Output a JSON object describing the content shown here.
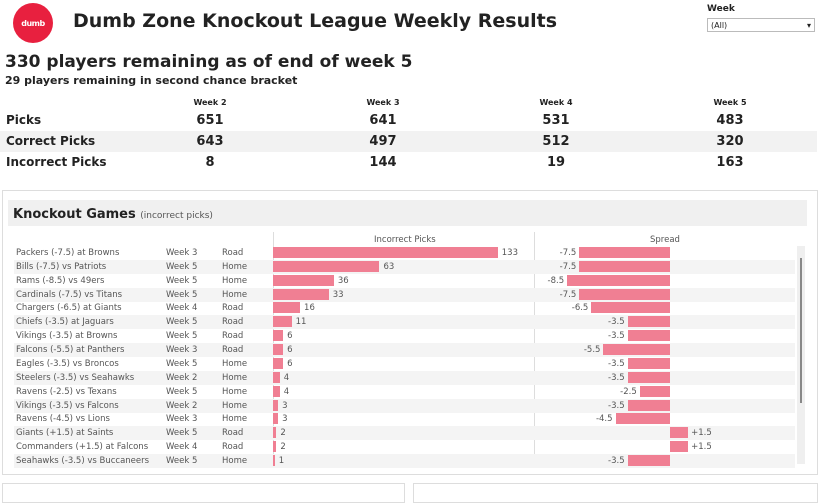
{
  "header": {
    "logo_text": "dumb",
    "title": "Dumb Zone Knockout League Weekly Results"
  },
  "filter": {
    "label": "Week",
    "value": "(All)"
  },
  "summary": {
    "headline": "330 players remaining as of end of week 5",
    "subline": "29 players remaining in second chance bracket"
  },
  "stats": {
    "columns": [
      "Week 2",
      "Week 3",
      "Week 4",
      "Week 5"
    ],
    "rows": [
      {
        "label": "Picks",
        "values": [
          "651",
          "641",
          "531",
          "483"
        ]
      },
      {
        "label": "Correct Picks",
        "values": [
          "643",
          "497",
          "512",
          "320"
        ]
      },
      {
        "label": "Incorrect Picks",
        "values": [
          "8",
          "144",
          "19",
          "163"
        ]
      }
    ]
  },
  "knockout": {
    "title": "Knockout Games",
    "subtitle": "(incorrect picks)",
    "col_incorrect": "Incorrect Picks",
    "col_spread": "Spread",
    "bar_color": "#f07f93",
    "rows": [
      {
        "game": "Packers (-7.5) at Browns",
        "week": "Week 3",
        "loc": "Road",
        "incorrect": 133,
        "spread": -7.5,
        "spread_label": "-7.5"
      },
      {
        "game": "Bills (-7.5) vs Patriots",
        "week": "Week 5",
        "loc": "Home",
        "incorrect": 63,
        "spread": -7.5,
        "spread_label": "-7.5"
      },
      {
        "game": "Rams (-8.5) vs 49ers",
        "week": "Week 5",
        "loc": "Home",
        "incorrect": 36,
        "spread": -8.5,
        "spread_label": "-8.5"
      },
      {
        "game": "Cardinals (-7.5) vs Titans",
        "week": "Week 5",
        "loc": "Home",
        "incorrect": 33,
        "spread": -7.5,
        "spread_label": "-7.5"
      },
      {
        "game": "Chargers (-6.5) at Giants",
        "week": "Week 4",
        "loc": "Road",
        "incorrect": 16,
        "spread": -6.5,
        "spread_label": "-6.5"
      },
      {
        "game": "Chiefs (-3.5) at Jaguars",
        "week": "Week 5",
        "loc": "Road",
        "incorrect": 11,
        "spread": -3.5,
        "spread_label": "-3.5"
      },
      {
        "game": "Vikings (-3.5) at Browns",
        "week": "Week 5",
        "loc": "Road",
        "incorrect": 6,
        "spread": -3.5,
        "spread_label": "-3.5"
      },
      {
        "game": "Falcons (-5.5) at Panthers",
        "week": "Week 3",
        "loc": "Road",
        "incorrect": 6,
        "spread": -5.5,
        "spread_label": "-5.5"
      },
      {
        "game": "Eagles (-3.5) vs Broncos",
        "week": "Week 5",
        "loc": "Home",
        "incorrect": 6,
        "spread": -3.5,
        "spread_label": "-3.5"
      },
      {
        "game": "Steelers (-3.5) vs Seahawks",
        "week": "Week 2",
        "loc": "Home",
        "incorrect": 4,
        "spread": -3.5,
        "spread_label": "-3.5"
      },
      {
        "game": "Ravens (-2.5) vs Texans",
        "week": "Week 5",
        "loc": "Home",
        "incorrect": 4,
        "spread": -2.5,
        "spread_label": "-2.5"
      },
      {
        "game": "Vikings (-3.5) vs Falcons",
        "week": "Week 2",
        "loc": "Home",
        "incorrect": 3,
        "spread": -3.5,
        "spread_label": "-3.5"
      },
      {
        "game": "Ravens (-4.5) vs Lions",
        "week": "Week 3",
        "loc": "Home",
        "incorrect": 3,
        "spread": -4.5,
        "spread_label": "-4.5"
      },
      {
        "game": "Giants (+1.5) at Saints",
        "week": "Week 5",
        "loc": "Road",
        "incorrect": 2,
        "spread": 1.5,
        "spread_label": "+1.5"
      },
      {
        "game": "Commanders (+1.5) at Falcons",
        "week": "Week 4",
        "loc": "Road",
        "incorrect": 2,
        "spread": 1.5,
        "spread_label": "+1.5"
      },
      {
        "game": "Seahawks (-3.5) vs Buccaneers",
        "week": "Week 5",
        "loc": "Home",
        "incorrect": 1,
        "spread": -3.5,
        "spread_label": "-3.5"
      }
    ]
  }
}
